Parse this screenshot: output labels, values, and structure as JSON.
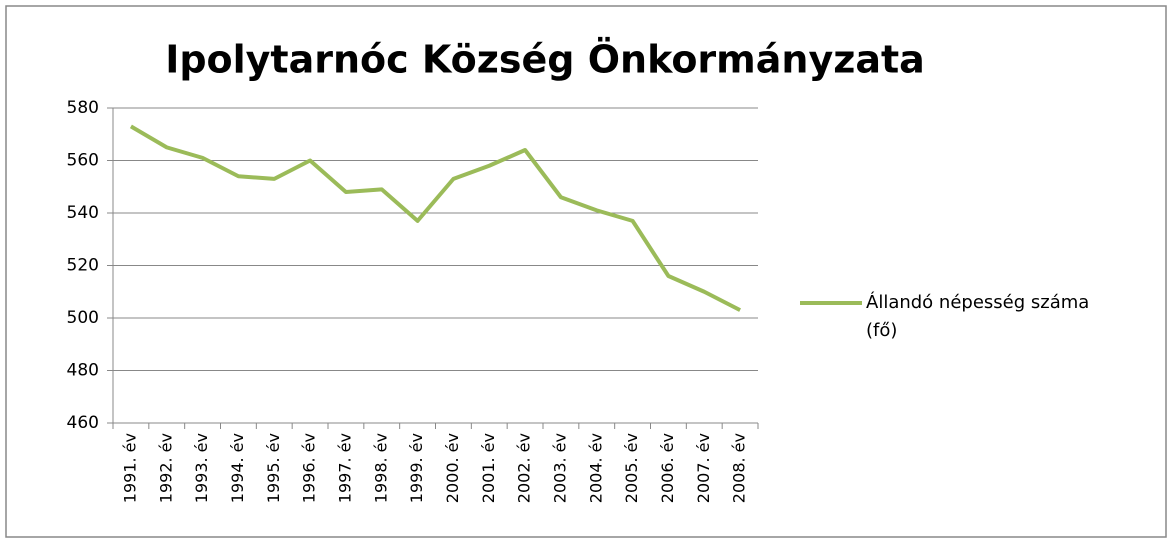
{
  "chart_data": {
    "type": "line",
    "title": "Ipolytarnóc Község Önkormányzata",
    "categories": [
      "1991. év",
      "1992. év",
      "1993. év",
      "1994. év",
      "1995. év",
      "1996. év",
      "1997. év",
      "1998. év",
      "1999. év",
      "2000. év",
      "2001. év",
      "2002. év",
      "2003. év",
      "2004. év",
      "2005. év",
      "2006. év",
      "2007. év",
      "2008. év"
    ],
    "series": [
      {
        "name": "Állandó népesség száma (fő)",
        "color": "#9bbb59",
        "values": [
          573,
          565,
          561,
          554,
          553,
          560,
          548,
          549,
          537,
          553,
          558,
          564,
          546,
          541,
          537,
          516,
          510,
          503
        ]
      }
    ],
    "ylim": [
      460,
      580
    ],
    "yticks": [
      460,
      480,
      500,
      520,
      540,
      560,
      580
    ],
    "grid": true,
    "legend": "right"
  }
}
